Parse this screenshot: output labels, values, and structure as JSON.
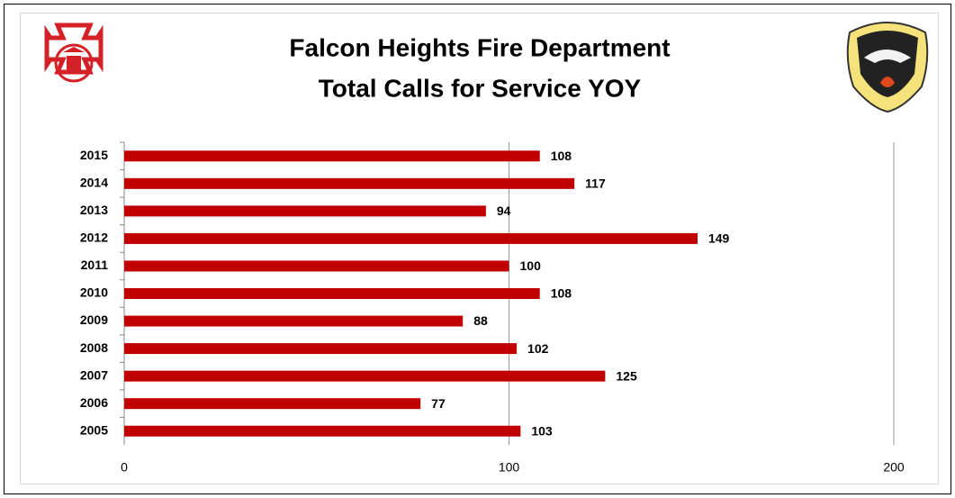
{
  "chart_data": {
    "type": "bar",
    "orientation": "horizontal",
    "title": "Falcon Heights Fire Department",
    "subtitle": "Total Calls for Service YOY",
    "categories": [
      "2015",
      "2014",
      "2013",
      "2012",
      "2011",
      "2010",
      "2009",
      "2008",
      "2007",
      "2006",
      "2005"
    ],
    "values": [
      108,
      117,
      94,
      149,
      100,
      108,
      88,
      102,
      125,
      77,
      103
    ],
    "color": "#c00000",
    "xlim": [
      0,
      200
    ],
    "xticks": [
      0,
      100,
      200
    ],
    "grid": true
  }
}
